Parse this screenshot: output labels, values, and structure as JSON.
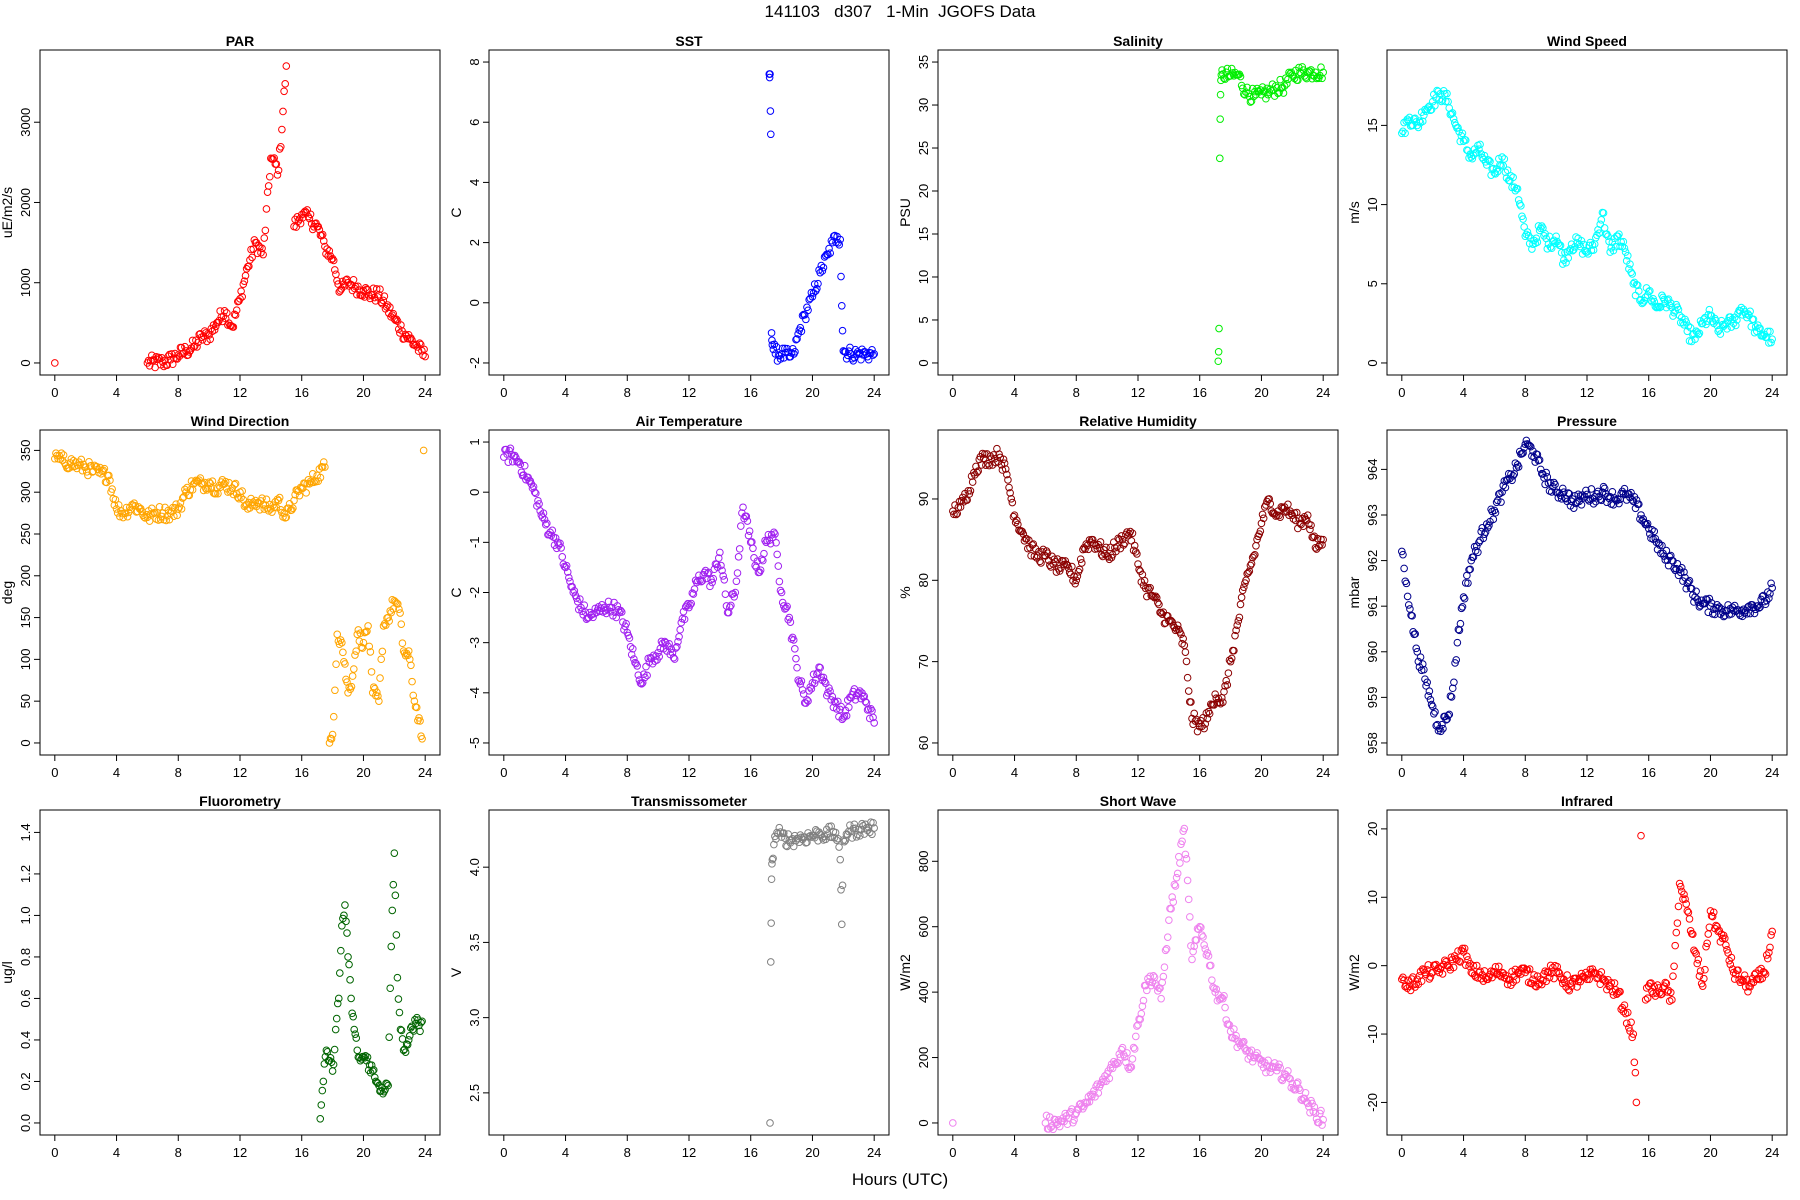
{
  "page": {
    "title": "141103   d307   1-Min  JGOFS Data",
    "xlabel": "Hours (UTC)"
  },
  "chart_data": [
    {
      "type": "scatter",
      "title": "PAR",
      "ylabel": "uE/m2/s",
      "color": "#ff0000",
      "xlim": [
        0,
        24
      ],
      "ylim": [
        0,
        3750
      ],
      "xticks": [
        0,
        4,
        8,
        12,
        16,
        20,
        24
      ],
      "yticks": [
        0,
        1000,
        2000,
        3000
      ],
      "x": [
        0,
        6,
        7,
        7.5,
        8,
        8.5,
        9,
        9.5,
        10,
        10.5,
        11,
        11.5,
        12,
        12.5,
        13,
        13.5,
        14,
        14.5,
        15,
        15.5,
        16,
        16.5,
        17,
        17.5,
        18,
        18.5,
        19,
        19.5,
        20,
        20.5,
        21,
        21.5,
        22,
        22.5,
        23,
        23.5,
        24
      ],
      "y": [
        0,
        0,
        10,
        40,
        100,
        150,
        200,
        320,
        350,
        500,
        650,
        450,
        800,
        1200,
        1500,
        1350,
        2550,
        2400,
        3700,
        1700,
        1850,
        1800,
        1700,
        1450,
        1300,
        900,
        1000,
        950,
        900,
        850,
        850,
        700,
        550,
        400,
        300,
        200,
        80
      ]
    },
    {
      "type": "scatter",
      "title": "SST",
      "ylabel": "C",
      "color": "#0000ff",
      "xlim": [
        0,
        24
      ],
      "ylim": [
        -2,
        8
      ],
      "xticks": [
        0,
        4,
        8,
        12,
        16,
        20,
        24
      ],
      "yticks": [
        -2,
        0,
        2,
        4,
        6,
        8
      ],
      "x": [
        17.2,
        17.25,
        17.3,
        17.35,
        17.4,
        17.6,
        18,
        18.5,
        18.8,
        19,
        19.5,
        20,
        20.5,
        21,
        21.3,
        21.6,
        21.8,
        21.9,
        22,
        22.5,
        23,
        23.5,
        24
      ],
      "y": [
        7.6,
        7.6,
        5.6,
        -1,
        -1.4,
        -1.7,
        -1.7,
        -1.8,
        -1.7,
        -1.2,
        -0.4,
        0.2,
        1.0,
        1.6,
        2.0,
        2.2,
        2.1,
        -0.1,
        -1.6,
        -1.7,
        -1.7,
        -1.7,
        -1.7
      ]
    },
    {
      "type": "scatter",
      "title": "Salinity",
      "ylabel": "PSU",
      "color": "#00ee00",
      "xlim": [
        0,
        24
      ],
      "ylim": [
        0,
        35
      ],
      "xticks": [
        0,
        4,
        8,
        12,
        16,
        20,
        24
      ],
      "yticks": [
        0,
        5,
        10,
        15,
        20,
        25,
        30,
        35
      ],
      "x": [
        17.2,
        17.25,
        17.3,
        17.35,
        17.4,
        17.5,
        18,
        18.5,
        19,
        19.5,
        20,
        20.5,
        21,
        21.5,
        22,
        22.5,
        23,
        23.5,
        24
      ],
      "y": [
        0.2,
        4,
        23.8,
        31.2,
        33.5,
        33.6,
        33.4,
        33.5,
        31.5,
        31,
        31.2,
        31.5,
        32,
        32.2,
        33.5,
        33.8,
        33.8,
        33.8,
        33.8
      ]
    },
    {
      "type": "scatter",
      "title": "Wind Speed",
      "ylabel": "m/s",
      "color": "#00ffff",
      "xlim": [
        0,
        24
      ],
      "ylim": [
        0,
        19
      ],
      "xticks": [
        0,
        4,
        8,
        12,
        16,
        20,
        24
      ],
      "yticks": [
        0,
        5,
        10,
        15
      ],
      "x": [
        0,
        0.5,
        1,
        1.5,
        2,
        2.5,
        3,
        3.5,
        4,
        4.5,
        5,
        5.5,
        6,
        6.5,
        7,
        7.5,
        8,
        8.5,
        9,
        9.5,
        10,
        10.5,
        11,
        11.5,
        12,
        12.5,
        13,
        13.5,
        14,
        14.5,
        15,
        15.5,
        16,
        16.5,
        17,
        17.5,
        18,
        18.5,
        19,
        19.5,
        20,
        20.5,
        21,
        21.5,
        22,
        22.5,
        23,
        23.5,
        24
      ],
      "y": [
        14.5,
        15.5,
        15.0,
        16.0,
        16.5,
        17.0,
        16.5,
        15.0,
        14.0,
        13.0,
        13.5,
        12.5,
        12.0,
        13.0,
        11.5,
        11.0,
        8.0,
        7.5,
        8.5,
        7.5,
        8.0,
        6.5,
        7.5,
        7.5,
        7.0,
        7.5,
        9.5,
        7.0,
        8.0,
        7.0,
        5.0,
        4.0,
        4.5,
        3.5,
        4.0,
        3.5,
        3.0,
        2.0,
        1.5,
        2.5,
        3.0,
        2.0,
        2.5,
        2.5,
        3.5,
        3.0,
        2.0,
        1.8,
        1.5
      ]
    },
    {
      "type": "scatter",
      "title": "Wind Direction",
      "ylabel": "deg",
      "color": "#ffa500",
      "xlim": [
        0,
        24
      ],
      "ylim": [
        0,
        360
      ],
      "xticks": [
        0,
        4,
        8,
        12,
        16,
        20,
        24
      ],
      "yticks": [
        0,
        50,
        100,
        150,
        200,
        250,
        300,
        350
      ],
      "x": [
        0,
        0.5,
        1,
        1.5,
        2,
        2.5,
        3,
        3.5,
        4,
        4.5,
        5,
        5.5,
        6,
        6.5,
        7,
        7.5,
        8,
        8.5,
        9,
        9.5,
        10,
        10.5,
        11,
        11.5,
        12,
        12.5,
        13,
        13.5,
        14,
        14.5,
        15,
        15.5,
        16,
        16.5,
        17,
        17.5,
        17.8,
        18,
        18.3,
        18.6,
        19,
        19.3,
        19.6,
        20,
        20.3,
        20.6,
        21,
        21.3,
        21.6,
        22,
        22.3,
        22.6,
        23,
        23.3,
        23.6,
        23.8,
        23.9
      ],
      "y": [
        340,
        338,
        335,
        332,
        330,
        325,
        322,
        320,
        280,
        275,
        285,
        280,
        270,
        275,
        275,
        275,
        280,
        300,
        310,
        310,
        312,
        305,
        310,
        305,
        300,
        280,
        290,
        285,
        280,
        290,
        270,
        290,
        305,
        310,
        320,
        330,
        0,
        10,
        130,
        120,
        60,
        80,
        130,
        120,
        140,
        60,
        50,
        140,
        150,
        170,
        160,
        110,
        100,
        50,
        30,
        5,
        350
      ]
    },
    {
      "type": "scatter",
      "title": "Air Temperature",
      "ylabel": "C",
      "color": "#a020f0",
      "xlim": [
        0,
        24
      ],
      "ylim": [
        -5,
        1
      ],
      "xticks": [
        0,
        4,
        8,
        12,
        16,
        20,
        24
      ],
      "yticks": [
        -5,
        -4,
        -3,
        -2,
        -1,
        0,
        1
      ],
      "x": [
        0,
        0.5,
        1,
        1.5,
        2,
        2.5,
        3,
        3.5,
        4,
        4.5,
        5,
        5.5,
        6,
        6.5,
        7,
        7.5,
        8,
        8.5,
        9,
        9.5,
        10,
        10.5,
        11,
        11.5,
        12,
        12.5,
        13,
        13.5,
        14,
        14.5,
        15,
        15.5,
        16,
        16.5,
        17,
        17.5,
        18,
        18.5,
        19,
        19.5,
        20,
        20.5,
        21,
        21.5,
        22,
        22.5,
        23,
        23.5,
        24
      ],
      "y": [
        0.7,
        0.75,
        0.6,
        0.3,
        0.0,
        -0.5,
        -0.8,
        -1.0,
        -1.5,
        -2.0,
        -2.3,
        -2.5,
        -2.4,
        -2.3,
        -2.3,
        -2.4,
        -2.8,
        -3.4,
        -3.8,
        -3.3,
        -3.2,
        -3.0,
        -3.3,
        -2.6,
        -2.3,
        -1.8,
        -1.6,
        -1.8,
        -1.2,
        -2.4,
        -2.0,
        -0.3,
        -1.0,
        -1.6,
        -1.0,
        -0.8,
        -2.0,
        -2.5,
        -3.5,
        -4.2,
        -3.8,
        -3.5,
        -4.0,
        -4.2,
        -4.5,
        -4.1,
        -4.0,
        -4.2,
        -4.6
      ]
    },
    {
      "type": "scatter",
      "title": "Relative Humidity",
      "ylabel": "%",
      "color": "#8b0000",
      "xlim": [
        0,
        24
      ],
      "ylim": [
        60,
        97
      ],
      "xticks": [
        0,
        4,
        8,
        12,
        16,
        20,
        24
      ],
      "yticks": [
        60,
        70,
        80,
        90
      ],
      "x": [
        0,
        0.5,
        1,
        1.5,
        2,
        2.5,
        3,
        3.5,
        4,
        4.5,
        5,
        5.5,
        6,
        6.5,
        7,
        7.5,
        8,
        8.5,
        9,
        9.5,
        10,
        10.5,
        11,
        11.5,
        12,
        12.5,
        13,
        13.5,
        14,
        14.5,
        15,
        15.5,
        16,
        16.5,
        17,
        17.5,
        18,
        18.5,
        19,
        19.5,
        20,
        20.5,
        21,
        21.5,
        22,
        22.5,
        23,
        23.5,
        24
      ],
      "y": [
        88.5,
        89,
        91,
        94,
        95,
        95,
        95.5,
        93,
        88,
        86,
        84,
        83,
        83,
        82,
        81.5,
        81.5,
        80,
        84,
        85,
        84,
        83,
        84,
        85,
        86,
        82,
        79,
        78,
        76,
        75,
        74,
        72,
        63,
        62,
        63,
        66,
        65,
        70,
        75,
        80,
        83,
        87,
        90,
        88,
        89,
        88,
        87,
        88,
        84,
        85
      ]
    },
    {
      "type": "scatter",
      "title": "Pressure",
      "ylabel": "mbar",
      "color": "#00008b",
      "xlim": [
        0,
        24
      ],
      "ylim": [
        958,
        964.6
      ],
      "xticks": [
        0,
        4,
        8,
        12,
        16,
        20,
        24
      ],
      "yticks": [
        958,
        959,
        960,
        961,
        962,
        963,
        964
      ],
      "x": [
        0,
        0.3,
        0.6,
        1,
        1.5,
        2,
        2.3,
        2.6,
        3,
        3.3,
        3.6,
        4,
        4.5,
        5,
        5.5,
        6,
        6.5,
        7,
        7.5,
        8,
        8.5,
        9,
        9.5,
        10,
        10.5,
        11,
        11.5,
        12,
        12.5,
        13,
        13.5,
        14,
        14.5,
        15,
        15.5,
        16,
        16.5,
        17,
        17.5,
        18,
        18.5,
        19,
        19.5,
        20,
        20.5,
        21,
        21.5,
        22,
        22.5,
        23,
        23.5,
        24
      ],
      "y": [
        962.2,
        961.5,
        960.8,
        960.0,
        959.4,
        958.8,
        958.4,
        958.4,
        958.6,
        959.2,
        960.2,
        961.2,
        962.0,
        962.4,
        962.8,
        963.1,
        963.5,
        963.8,
        964.1,
        964.55,
        964.4,
        964.0,
        963.7,
        963.5,
        963.5,
        963.3,
        963.3,
        963.45,
        963.4,
        963.5,
        963.4,
        963.35,
        963.45,
        963.3,
        963.0,
        962.7,
        962.4,
        962.1,
        962.0,
        961.8,
        961.5,
        961.2,
        961.05,
        961.0,
        960.95,
        960.9,
        960.9,
        960.9,
        961.0,
        961.0,
        961.1,
        961.4
      ]
    },
    {
      "type": "scatter",
      "title": "Fluorometry",
      "ylabel": "ug/l",
      "color": "#006400",
      "xlim": [
        0,
        24
      ],
      "ylim": [
        0,
        1.45
      ],
      "xticks": [
        0,
        4,
        8,
        12,
        16,
        20,
        24
      ],
      "yticks": [
        0.0,
        0.2,
        0.4,
        0.6,
        0.8,
        1.0,
        1.2,
        1.4
      ],
      "x": [
        17.2,
        17.4,
        17.6,
        17.8,
        18.0,
        18.2,
        18.4,
        18.6,
        18.8,
        19.0,
        19.2,
        19.4,
        19.6,
        19.8,
        20.0,
        20.2,
        20.4,
        20.6,
        20.8,
        21.0,
        21.2,
        21.4,
        21.6,
        21.8,
        22.0,
        22.2,
        22.4,
        22.6,
        22.8,
        23.0,
        23.2,
        23.4,
        23.6,
        23.8
      ],
      "y": [
        0.02,
        0.2,
        0.35,
        0.3,
        0.25,
        0.45,
        0.6,
        0.95,
        1.05,
        0.8,
        0.6,
        0.45,
        0.35,
        0.3,
        0.32,
        0.3,
        0.28,
        0.25,
        0.2,
        0.18,
        0.17,
        0.16,
        0.18,
        0.85,
        1.3,
        0.7,
        0.45,
        0.35,
        0.38,
        0.42,
        0.45,
        0.48,
        0.47,
        0.49
      ]
    },
    {
      "type": "scatter",
      "title": "Transmissometer",
      "ylabel": "V",
      "color": "#808080",
      "xlim": [
        0,
        24
      ],
      "ylim": [
        2.3,
        4.3
      ],
      "xticks": [
        0,
        4,
        8,
        12,
        16,
        20,
        24
      ],
      "yticks": [
        2.5,
        3.0,
        3.5,
        4.0
      ],
      "x": [
        17.25,
        17.3,
        17.35,
        17.4,
        17.5,
        17.7,
        18,
        18.5,
        19,
        19.5,
        20,
        20.5,
        21,
        21.5,
        21.8,
        21.9,
        22,
        22.2,
        22.5,
        23,
        23.5,
        24
      ],
      "y": [
        2.3,
        3.37,
        3.92,
        4.05,
        4.15,
        4.23,
        4.2,
        4.18,
        4.19,
        4.2,
        4.21,
        4.22,
        4.22,
        4.23,
        4.05,
        3.62,
        4.18,
        4.22,
        4.24,
        4.25,
        4.26,
        4.26
      ]
    },
    {
      "type": "scatter",
      "title": "Short Wave",
      "ylabel": "W/m2",
      "color": "#ee82ee",
      "xlim": [
        0,
        24
      ],
      "ylim": [
        0,
        920
      ],
      "xticks": [
        0,
        4,
        8,
        12,
        16,
        20,
        24
      ],
      "yticks": [
        0,
        200,
        400,
        600,
        800
      ],
      "x": [
        0,
        6,
        7,
        7.5,
        8,
        8.5,
        9,
        9.5,
        10,
        10.5,
        11,
        11.5,
        12,
        12.5,
        13,
        13.5,
        14,
        14.5,
        15,
        15.5,
        16,
        16.5,
        17,
        17.5,
        18,
        18.5,
        19,
        19.5,
        20,
        20.5,
        21,
        21.5,
        22,
        22.5,
        23,
        23.5,
        24
      ],
      "y": [
        0,
        0,
        5,
        15,
        30,
        50,
        80,
        110,
        150,
        180,
        230,
        170,
        300,
        420,
        450,
        380,
        620,
        750,
        900,
        500,
        600,
        520,
        400,
        380,
        280,
        250,
        220,
        200,
        180,
        170,
        160,
        150,
        120,
        100,
        60,
        30,
        10
      ]
    },
    {
      "type": "scatter",
      "title": "Infrared",
      "ylabel": "W/m2",
      "color": "#ff0000",
      "xlim": [
        0,
        24
      ],
      "ylim": [
        -23,
        21
      ],
      "xticks": [
        0,
        4,
        8,
        12,
        16,
        20,
        24
      ],
      "yticks": [
        -20,
        -10,
        0,
        10,
        20
      ],
      "x": [
        0,
        0.5,
        1,
        1.5,
        2,
        2.5,
        3,
        3.5,
        4,
        4.5,
        5,
        5.5,
        6,
        6.5,
        7,
        7.5,
        8,
        8.5,
        9,
        9.5,
        10,
        10.5,
        11,
        11.5,
        12,
        12.5,
        13,
        13.5,
        14,
        14.5,
        15,
        15.2,
        15.5,
        15.8,
        16,
        16.5,
        17,
        17.5,
        18,
        18.5,
        19,
        19.5,
        20,
        20.5,
        21,
        21.5,
        22,
        22.5,
        23,
        23.5,
        24
      ],
      "y": [
        -2,
        -3,
        -2,
        -1,
        -1,
        -0.5,
        0,
        1,
        2,
        -1,
        -1,
        -2,
        -1,
        -1,
        -2,
        -1,
        -1,
        -2,
        -2,
        -1,
        -1,
        -2,
        -3,
        -2,
        -2,
        -1,
        -2,
        -3,
        -4,
        -7,
        -10,
        -20,
        19,
        -5,
        -3,
        -4,
        -3,
        -5,
        12,
        8,
        2,
        -3,
        8,
        5,
        3,
        -1,
        -2,
        -3,
        -2,
        -1,
        5
      ]
    }
  ]
}
